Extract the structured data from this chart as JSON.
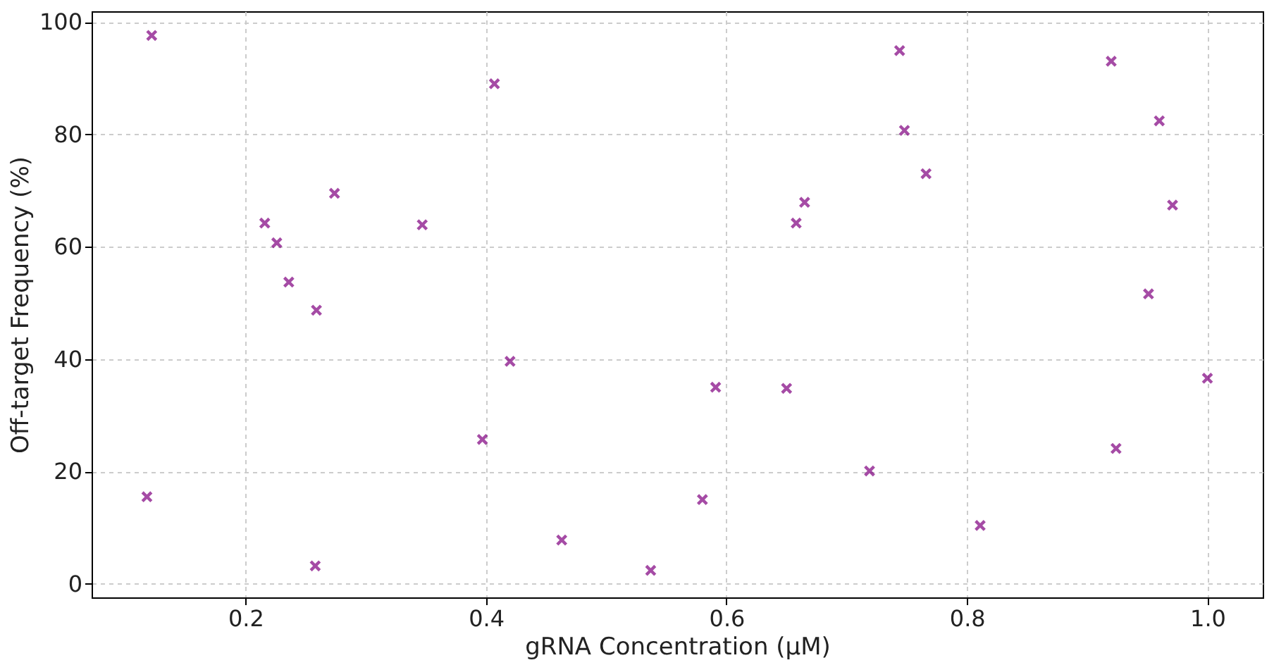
{
  "chart_data": {
    "type": "scatter",
    "xlabel": "gRNA Concentration (μM)",
    "ylabel": "Off-target Frequency (%)",
    "x": [
      0.122,
      0.118,
      0.216,
      0.226,
      0.236,
      0.259,
      0.258,
      0.274,
      0.347,
      0.397,
      0.407,
      0.42,
      0.463,
      0.537,
      0.58,
      0.591,
      0.65,
      0.658,
      0.665,
      0.719,
      0.744,
      0.748,
      0.766,
      0.811,
      0.92,
      0.924,
      0.951,
      0.96,
      0.971,
      1.0
    ],
    "series": [
      {
        "color": "#800080",
        "values": [
          97.6,
          15.5,
          64.2,
          60.7,
          53.7,
          48.7,
          3.2,
          69.5,
          63.9,
          25.7,
          89.0,
          39.6,
          7.8,
          2.4,
          15.0,
          35.0,
          34.8,
          64.2,
          67.9,
          20.1,
          94.9,
          80.7,
          73.0,
          10.4,
          93.0,
          24.1,
          51.6,
          82.4,
          67.4,
          36.6
        ]
      }
    ],
    "xlim": [
      0.072,
      1.046
    ],
    "ylim": [
      -2.4,
      101.9
    ],
    "xticks": [
      {
        "value": 0.2,
        "label": "0.2"
      },
      {
        "value": 0.4,
        "label": "0.4"
      },
      {
        "value": 0.6,
        "label": "0.6"
      },
      {
        "value": 0.8,
        "label": "0.8"
      },
      {
        "value": 1.0,
        "label": "1.0"
      }
    ],
    "yticks": [
      0,
      20,
      40,
      60,
      80,
      100
    ],
    "grid": true,
    "marker": "cross"
  }
}
